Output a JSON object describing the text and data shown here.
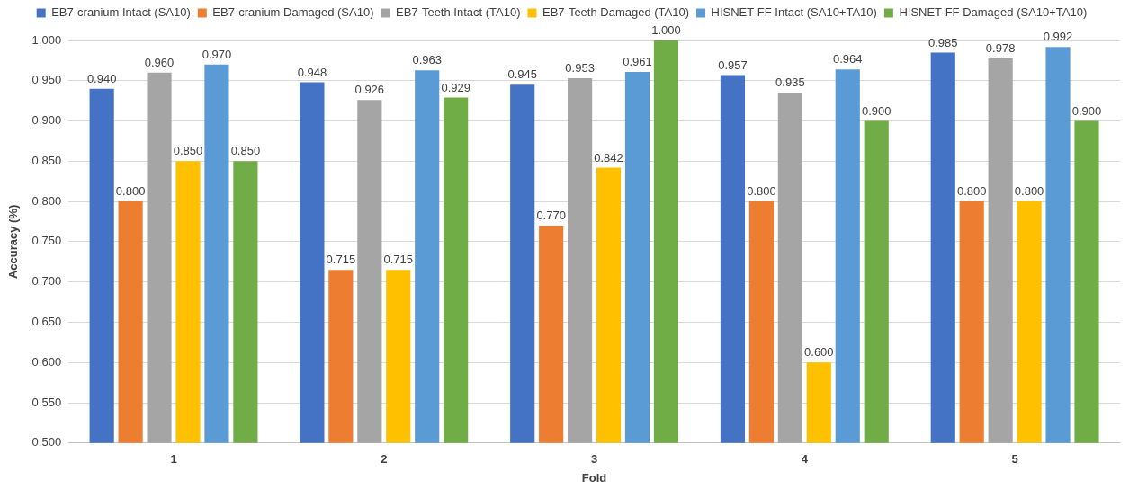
{
  "chart_data": {
    "type": "bar",
    "xlabel": "Fold",
    "ylabel": "Accuracy (%)",
    "categories": [
      "1",
      "2",
      "3",
      "4",
      "5"
    ],
    "series": [
      {
        "name": "EB7-cranium Intact (SA10)",
        "color": "#4472c4",
        "values": [
          0.94,
          0.948,
          0.945,
          0.957,
          0.985
        ],
        "value_labels": [
          "0.940",
          "0.948",
          "0.945",
          "0.957",
          "0.985"
        ]
      },
      {
        "name": "EB7-cranium Damaged (SA10)",
        "color": "#ed7d31",
        "values": [
          0.8,
          0.715,
          0.77,
          0.8,
          0.8
        ],
        "value_labels": [
          "0.800",
          "0.715",
          "0.770",
          "0.800",
          "0.800"
        ]
      },
      {
        "name": "EB7-Teeth Intact (TA10)",
        "color": "#a5a5a5",
        "values": [
          0.96,
          0.926,
          0.953,
          0.935,
          0.978
        ],
        "value_labels": [
          "0.960",
          "0.926",
          "0.953",
          "0.935",
          "0.978"
        ]
      },
      {
        "name": "EB7-Teeth Damaged (TA10)",
        "color": "#ffc000",
        "values": [
          0.85,
          0.715,
          0.842,
          0.6,
          0.8
        ],
        "value_labels": [
          "0.850",
          "0.715",
          "0.842",
          "0.600",
          "0.800"
        ]
      },
      {
        "name": "HISNET-FF Intact (SA10+TA10)",
        "color": "#5b9bd5",
        "values": [
          0.97,
          0.963,
          0.961,
          0.964,
          0.992
        ],
        "value_labels": [
          "0.970",
          "0.963",
          "0.961",
          "0.964",
          "0.992"
        ]
      },
      {
        "name": "HISNET-FF Damaged (SA10+TA10)",
        "color": "#70ad47",
        "values": [
          0.85,
          0.929,
          1.0,
          0.9,
          0.9
        ],
        "value_labels": [
          "0.850",
          "0.929",
          "1.000",
          "0.900",
          "0.900"
        ]
      }
    ],
    "ylim": [
      0.5,
      1.0
    ],
    "yticks": [
      {
        "value": 0.5,
        "label": "0.500"
      },
      {
        "value": 0.55,
        "label": "0.550"
      },
      {
        "value": 0.6,
        "label": "0.600"
      },
      {
        "value": 0.65,
        "label": "0.650"
      },
      {
        "value": 0.7,
        "label": "0.700"
      },
      {
        "value": 0.75,
        "label": "0.750"
      },
      {
        "value": 0.8,
        "label": "0.800"
      },
      {
        "value": 0.85,
        "label": "0.850"
      },
      {
        "value": 0.9,
        "label": "0.900"
      },
      {
        "value": 0.95,
        "label": "0.950"
      },
      {
        "value": 1.0,
        "label": "1.000"
      }
    ],
    "grid": "y",
    "legend": "top"
  }
}
